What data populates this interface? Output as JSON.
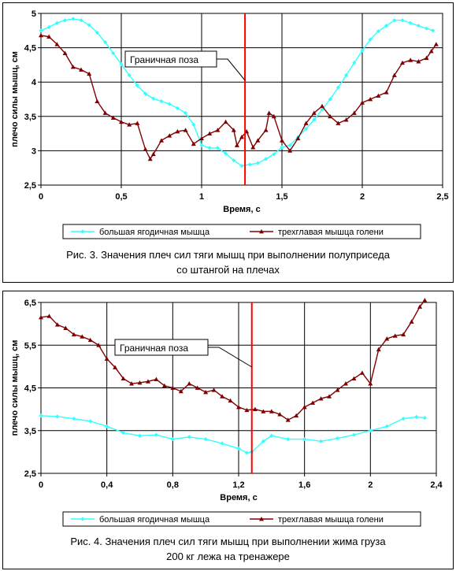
{
  "chart_data": [
    {
      "type": "line",
      "caption": [
        "Рис. 3.  Значения плеч сил тяги мышц при выполнении полуприседа",
        "со штангой на плечах"
      ],
      "xlabel": "Время, с",
      "ylabel": "плечо силы мышц, см",
      "xlim": [
        0,
        2.5
      ],
      "ylim": [
        2.5,
        5
      ],
      "x_ticks": [
        "0",
        "0,5",
        "1",
        "1,5",
        "2",
        "2,5"
      ],
      "y_ticks": [
        "2,5",
        "3",
        "3,5",
        "4",
        "4,5",
        "5"
      ],
      "grid": true,
      "legend_position": "bottom",
      "annotation": {
        "text": "Граничная поза",
        "x": 1.27
      },
      "boundary_x": 1.27,
      "series": [
        {
          "name": "большая ягодичная мышца",
          "color": "#33ffff",
          "marker": "diamond",
          "points": [
            [
              0,
              4.75
            ],
            [
              0.05,
              4.8
            ],
            [
              0.1,
              4.86
            ],
            [
              0.15,
              4.9
            ],
            [
              0.2,
              4.92
            ],
            [
              0.25,
              4.9
            ],
            [
              0.3,
              4.83
            ],
            [
              0.35,
              4.72
            ],
            [
              0.4,
              4.58
            ],
            [
              0.45,
              4.42
            ],
            [
              0.5,
              4.26
            ],
            [
              0.55,
              4.1
            ],
            [
              0.6,
              3.95
            ],
            [
              0.65,
              3.83
            ],
            [
              0.7,
              3.76
            ],
            [
              0.75,
              3.72
            ],
            [
              0.8,
              3.68
            ],
            [
              0.85,
              3.62
            ],
            [
              0.9,
              3.55
            ],
            [
              0.95,
              3.38
            ],
            [
              1.0,
              3.08
            ],
            [
              1.05,
              3.04
            ],
            [
              1.1,
              3.04
            ],
            [
              1.15,
              2.96
            ],
            [
              1.2,
              2.86
            ],
            [
              1.25,
              2.78
            ],
            [
              1.3,
              2.8
            ],
            [
              1.35,
              2.82
            ],
            [
              1.4,
              2.88
            ],
            [
              1.45,
              2.95
            ],
            [
              1.5,
              3.05
            ],
            [
              1.55,
              3.08
            ],
            [
              1.6,
              3.2
            ],
            [
              1.65,
              3.32
            ],
            [
              1.7,
              3.45
            ],
            [
              1.75,
              3.6
            ],
            [
              1.8,
              3.75
            ],
            [
              1.85,
              3.92
            ],
            [
              1.9,
              4.1
            ],
            [
              1.95,
              4.28
            ],
            [
              2.0,
              4.46
            ],
            [
              2.05,
              4.62
            ],
            [
              2.1,
              4.74
            ],
            [
              2.15,
              4.82
            ],
            [
              2.2,
              4.9
            ],
            [
              2.25,
              4.9
            ],
            [
              2.3,
              4.86
            ],
            [
              2.35,
              4.82
            ],
            [
              2.4,
              4.78
            ],
            [
              2.44,
              4.75
            ]
          ]
        },
        {
          "name": "трехглавая мышца голени",
          "color": "#800000",
          "marker": "triangle",
          "points": [
            [
              0,
              4.68
            ],
            [
              0.05,
              4.66
            ],
            [
              0.1,
              4.55
            ],
            [
              0.15,
              4.42
            ],
            [
              0.2,
              4.22
            ],
            [
              0.25,
              4.18
            ],
            [
              0.3,
              4.12
            ],
            [
              0.35,
              3.72
            ],
            [
              0.4,
              3.55
            ],
            [
              0.45,
              3.48
            ],
            [
              0.5,
              3.42
            ],
            [
              0.55,
              3.38
            ],
            [
              0.6,
              3.4
            ],
            [
              0.65,
              3.02
            ],
            [
              0.68,
              2.88
            ],
            [
              0.7,
              2.95
            ],
            [
              0.75,
              3.15
            ],
            [
              0.8,
              3.22
            ],
            [
              0.85,
              3.28
            ],
            [
              0.9,
              3.3
            ],
            [
              0.95,
              3.1
            ],
            [
              1.0,
              3.18
            ],
            [
              1.05,
              3.25
            ],
            [
              1.1,
              3.3
            ],
            [
              1.15,
              3.42
            ],
            [
              1.2,
              3.3
            ],
            [
              1.22,
              3.08
            ],
            [
              1.25,
              3.2
            ],
            [
              1.28,
              3.28
            ],
            [
              1.32,
              3.05
            ],
            [
              1.35,
              3.15
            ],
            [
              1.4,
              3.3
            ],
            [
              1.42,
              3.55
            ],
            [
              1.45,
              3.5
            ],
            [
              1.5,
              3.15
            ],
            [
              1.55,
              3.0
            ],
            [
              1.6,
              3.18
            ],
            [
              1.65,
              3.4
            ],
            [
              1.7,
              3.55
            ],
            [
              1.75,
              3.65
            ],
            [
              1.8,
              3.5
            ],
            [
              1.85,
              3.4
            ],
            [
              1.9,
              3.45
            ],
            [
              1.95,
              3.55
            ],
            [
              2.0,
              3.7
            ],
            [
              2.05,
              3.75
            ],
            [
              2.1,
              3.8
            ],
            [
              2.15,
              3.85
            ],
            [
              2.2,
              4.1
            ],
            [
              2.25,
              4.28
            ],
            [
              2.3,
              4.32
            ],
            [
              2.35,
              4.3
            ],
            [
              2.4,
              4.35
            ],
            [
              2.43,
              4.45
            ],
            [
              2.46,
              4.55
            ]
          ]
        }
      ]
    },
    {
      "type": "line",
      "caption": [
        "Рис. 4.  Значения плеч сил тяги мышц при выполнении жима груза",
        "200 кг лежа на тренажере"
      ],
      "xlabel": "Время, с",
      "ylabel": "плечо силы мышц, см",
      "xlim": [
        0,
        2.4
      ],
      "ylim": [
        2.5,
        6.5
      ],
      "x_ticks": [
        "0",
        "0,4",
        "0,8",
        "1,2",
        "1,6",
        "2",
        "2,4"
      ],
      "y_ticks": [
        "2,5",
        "3,5",
        "4,5",
        "5,5",
        "6,5"
      ],
      "grid": true,
      "legend_position": "bottom",
      "annotation": {
        "text": "Граничная поза",
        "x": 1.28
      },
      "boundary_x": 1.28,
      "series": [
        {
          "name": "большая ягодичная мышца",
          "color": "#33ffff",
          "marker": "diamond",
          "points": [
            [
              0,
              3.85
            ],
            [
              0.1,
              3.83
            ],
            [
              0.2,
              3.78
            ],
            [
              0.3,
              3.72
            ],
            [
              0.4,
              3.6
            ],
            [
              0.5,
              3.45
            ],
            [
              0.6,
              3.38
            ],
            [
              0.7,
              3.4
            ],
            [
              0.8,
              3.3
            ],
            [
              0.9,
              3.35
            ],
            [
              1.0,
              3.3
            ],
            [
              1.1,
              3.2
            ],
            [
              1.2,
              3.08
            ],
            [
              1.25,
              2.98
            ],
            [
              1.28,
              3.0
            ],
            [
              1.35,
              3.25
            ],
            [
              1.4,
              3.38
            ],
            [
              1.5,
              3.3
            ],
            [
              1.6,
              3.3
            ],
            [
              1.7,
              3.25
            ],
            [
              1.8,
              3.32
            ],
            [
              1.9,
              3.4
            ],
            [
              2.0,
              3.5
            ],
            [
              2.1,
              3.6
            ],
            [
              2.2,
              3.78
            ],
            [
              2.28,
              3.82
            ],
            [
              2.33,
              3.8
            ]
          ]
        },
        {
          "name": "трехглавая мышца голени",
          "color": "#800000",
          "marker": "triangle",
          "points": [
            [
              0,
              6.15
            ],
            [
              0.05,
              6.18
            ],
            [
              0.1,
              5.98
            ],
            [
              0.15,
              5.9
            ],
            [
              0.2,
              5.75
            ],
            [
              0.25,
              5.7
            ],
            [
              0.3,
              5.62
            ],
            [
              0.35,
              5.5
            ],
            [
              0.4,
              5.18
            ],
            [
              0.45,
              4.98
            ],
            [
              0.5,
              4.72
            ],
            [
              0.55,
              4.6
            ],
            [
              0.6,
              4.62
            ],
            [
              0.65,
              4.65
            ],
            [
              0.7,
              4.7
            ],
            [
              0.75,
              4.55
            ],
            [
              0.8,
              4.5
            ],
            [
              0.85,
              4.42
            ],
            [
              0.9,
              4.6
            ],
            [
              0.95,
              4.5
            ],
            [
              1.0,
              4.4
            ],
            [
              1.05,
              4.45
            ],
            [
              1.1,
              4.3
            ],
            [
              1.15,
              4.2
            ],
            [
              1.2,
              4.05
            ],
            [
              1.25,
              3.98
            ],
            [
              1.3,
              4.0
            ],
            [
              1.35,
              3.95
            ],
            [
              1.4,
              3.95
            ],
            [
              1.45,
              3.88
            ],
            [
              1.5,
              3.75
            ],
            [
              1.55,
              3.85
            ],
            [
              1.6,
              4.05
            ],
            [
              1.65,
              4.15
            ],
            [
              1.7,
              4.25
            ],
            [
              1.75,
              4.3
            ],
            [
              1.8,
              4.45
            ],
            [
              1.85,
              4.6
            ],
            [
              1.9,
              4.72
            ],
            [
              1.95,
              4.85
            ],
            [
              2.0,
              4.6
            ],
            [
              2.05,
              5.4
            ],
            [
              2.1,
              5.65
            ],
            [
              2.15,
              5.72
            ],
            [
              2.2,
              5.75
            ],
            [
              2.25,
              6.05
            ],
            [
              2.3,
              6.4
            ],
            [
              2.33,
              6.55
            ]
          ]
        }
      ]
    }
  ]
}
